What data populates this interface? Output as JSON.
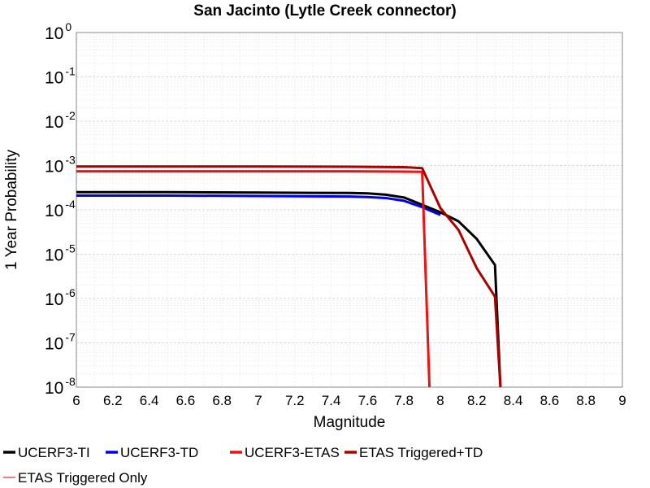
{
  "chart_data": {
    "type": "line",
    "title": "San Jacinto (Lytle Creek connector)",
    "xlabel": "Magnitude",
    "ylabel": "1 Year Probability",
    "xlim": [
      6,
      9
    ],
    "ylim": [
      1e-08,
      1
    ],
    "y_scale": "log",
    "grid": true,
    "legend_position": "bottom",
    "x_ticks": [
      "6",
      "6.2",
      "6.4",
      "6.6",
      "6.8",
      "7",
      "7.2",
      "7.4",
      "7.6",
      "7.8",
      "8",
      "8.2",
      "8.4",
      "8.6",
      "8.8",
      "9"
    ],
    "y_ticks": [
      {
        "base": "10",
        "exp": "-8"
      },
      {
        "base": "10",
        "exp": "-7"
      },
      {
        "base": "10",
        "exp": "-6"
      },
      {
        "base": "10",
        "exp": "-5"
      },
      {
        "base": "10",
        "exp": "-4"
      },
      {
        "base": "10",
        "exp": "-3"
      },
      {
        "base": "10",
        "exp": "-2"
      },
      {
        "base": "10",
        "exp": "-1"
      },
      {
        "base": "10",
        "exp": "0"
      }
    ],
    "series": [
      {
        "name": "UCERF3-TI",
        "color": "#000000",
        "x": [
          6.0,
          6.5,
          7.0,
          7.5,
          7.6,
          7.7,
          7.8,
          7.9,
          8.0,
          8.1,
          8.2,
          8.3,
          8.33
        ],
        "y": [
          0.00025,
          0.00025,
          0.000245,
          0.00024,
          0.000235,
          0.00022,
          0.00019,
          0.00013,
          8.8e-05,
          5.5e-05,
          2.2e-05,
          5.7e-06,
          1e-08
        ]
      },
      {
        "name": "UCERF3-TD",
        "color": "#0000ee",
        "x": [
          6.0,
          6.5,
          7.0,
          7.5,
          7.6,
          7.7,
          7.8,
          7.9,
          8.0
        ],
        "y": [
          0.00021,
          0.00021,
          0.000205,
          0.0002,
          0.000195,
          0.000185,
          0.00016,
          0.000115,
          7.7e-05
        ]
      },
      {
        "name": "UCERF3-ETAS",
        "color": "#ee1111",
        "x": [
          6.0,
          7.0,
          7.5,
          7.8,
          7.9,
          7.94
        ],
        "y": [
          0.00074,
          0.00074,
          0.00074,
          0.00073,
          0.00072,
          1e-08
        ]
      },
      {
        "name": "ETAS Triggered+TD",
        "color": "#aa0000",
        "x": [
          6.0,
          7.0,
          7.5,
          7.8,
          7.9,
          8.0,
          8.1,
          8.2,
          8.3,
          8.33
        ],
        "y": [
          0.00095,
          0.00095,
          0.00094,
          0.00092,
          0.00087,
          0.00011,
          3.5e-05,
          4.8e-06,
          1.1e-06,
          1e-08
        ]
      },
      {
        "name": "ETAS Triggered Only",
        "color": "#f08080",
        "x": [],
        "y": []
      }
    ]
  }
}
